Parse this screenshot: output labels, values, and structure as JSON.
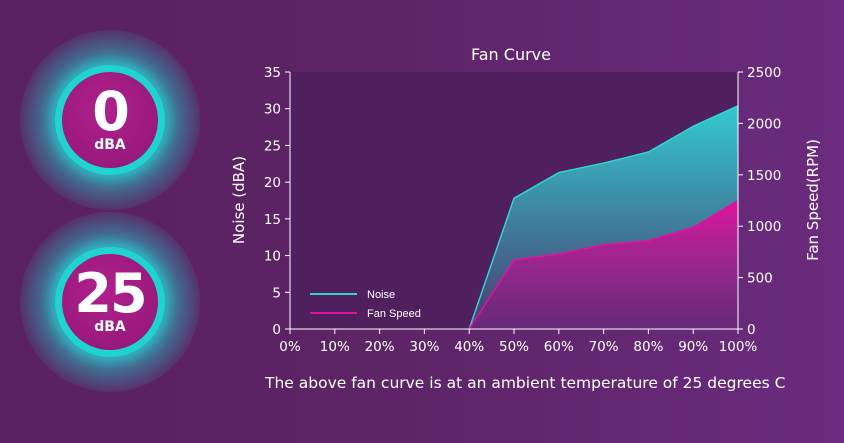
{
  "badges": [
    {
      "value": "0",
      "unit": "dBA"
    },
    {
      "value": "25",
      "unit": "dBA"
    }
  ],
  "caption": "The above fan curve is at an ambient temperature of 25 degrees C",
  "colors": {
    "noise": "#31d3d5",
    "fan_speed": "#e0139e",
    "plot_background": "#4f1f5e",
    "badge_ring": "#1fd3cf",
    "badge_core": "#9a197c"
  },
  "chart_data": {
    "type": "area",
    "title": "Fan Curve",
    "categories": [
      "0%",
      "10%",
      "20%",
      "30%",
      "40%",
      "50%",
      "60%",
      "70%",
      "80%",
      "90%",
      "100%"
    ],
    "ylabel_left": "Noise (dBA)",
    "ylabel_right": "Fan Speed(RPM)",
    "ylim_left": [
      0,
      35
    ],
    "ylim_right": [
      0,
      2500
    ],
    "yticks_left": [
      "0",
      "5",
      "10",
      "15",
      "20",
      "25",
      "30",
      "35"
    ],
    "yticks_right": [
      "0",
      "500",
      "1000",
      "1500",
      "2000",
      "2500"
    ],
    "series": [
      {
        "name": "Noise",
        "axis": "left",
        "values": [
          null,
          null,
          null,
          null,
          0,
          17.8,
          21.3,
          22.6,
          24.1,
          27.6,
          30.4
        ]
      },
      {
        "name": "Fan Speed",
        "axis": "right",
        "values": [
          null,
          null,
          null,
          null,
          0,
          670,
          730,
          820,
          860,
          990,
          1250
        ]
      }
    ],
    "legend_position": "bottom-left",
    "grid": false
  }
}
